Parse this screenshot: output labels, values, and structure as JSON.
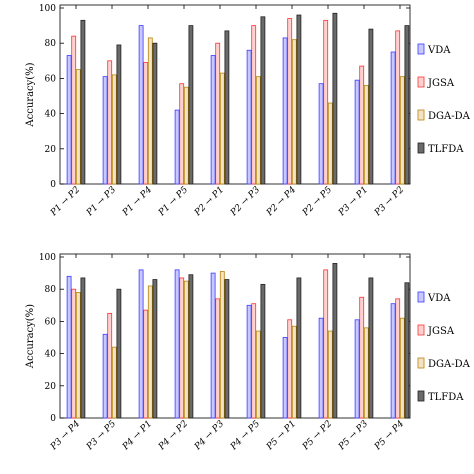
{
  "chart_data": [
    {
      "type": "bar",
      "title": "",
      "xlabel": "",
      "ylabel": "Accuracy(%)",
      "ylim": [
        0,
        100
      ],
      "yticks": [
        0,
        20,
        40,
        60,
        80,
        100
      ],
      "grid": false,
      "legend_position": "right",
      "categories": [
        "P1 → P2",
        "P1 → P3",
        "P1 → P4",
        "P1 → P5",
        "P2 → P1",
        "P2 → P3",
        "P2 → P4",
        "P2 → P5",
        "P3 → P1",
        "P3 → P2"
      ],
      "series": [
        {
          "name": "VDA",
          "color": "#3b3bff",
          "fill": "#c8c8ff",
          "values": [
            73,
            61,
            90,
            42,
            73,
            76,
            83,
            57,
            59,
            75
          ]
        },
        {
          "name": "JGSA",
          "color": "#ff3030",
          "fill": "#ffd2d2",
          "values": [
            84,
            70,
            69,
            57,
            80,
            90,
            94,
            93,
            67,
            87
          ]
        },
        {
          "name": "DGA-DA",
          "color": "#b8860b",
          "fill": "#f3e3c4",
          "values": [
            65,
            62,
            83,
            55,
            63,
            61,
            82,
            46,
            56,
            61
          ]
        },
        {
          "name": "TLFDA",
          "color": "#222222",
          "fill": "#6a6a6a",
          "values": [
            93,
            79,
            80,
            90,
            87,
            95,
            96,
            97,
            88,
            90
          ]
        }
      ]
    },
    {
      "type": "bar",
      "title": "",
      "xlabel": "",
      "ylabel": "Accuracy(%)",
      "ylim": [
        0,
        100
      ],
      "yticks": [
        0,
        20,
        40,
        60,
        80,
        100
      ],
      "grid": false,
      "legend_position": "right",
      "categories": [
        "P3 → P4",
        "P3 → P5",
        "P4 → P1",
        "P4 → P2",
        "P4 → P3",
        "P4 → P5",
        "P5 → P1",
        "P5 → P2",
        "P5 → P3",
        "P5 → P4"
      ],
      "series": [
        {
          "name": "VDA",
          "color": "#3b3bff",
          "fill": "#c8c8ff",
          "values": [
            88,
            52,
            92,
            92,
            90,
            70,
            50,
            62,
            61,
            71
          ]
        },
        {
          "name": "JGSA",
          "color": "#ff3030",
          "fill": "#ffd2d2",
          "values": [
            80,
            65,
            67,
            87,
            74,
            71,
            61,
            92,
            75,
            74
          ]
        },
        {
          "name": "DGA-DA",
          "color": "#b8860b",
          "fill": "#f3e3c4",
          "values": [
            78,
            44,
            82,
            85,
            91,
            54,
            57,
            54,
            56,
            62
          ]
        },
        {
          "name": "TLFDA",
          "color": "#222222",
          "fill": "#6a6a6a",
          "values": [
            87,
            80,
            86,
            89,
            86,
            83,
            87,
            96,
            87,
            84
          ]
        }
      ]
    }
  ]
}
